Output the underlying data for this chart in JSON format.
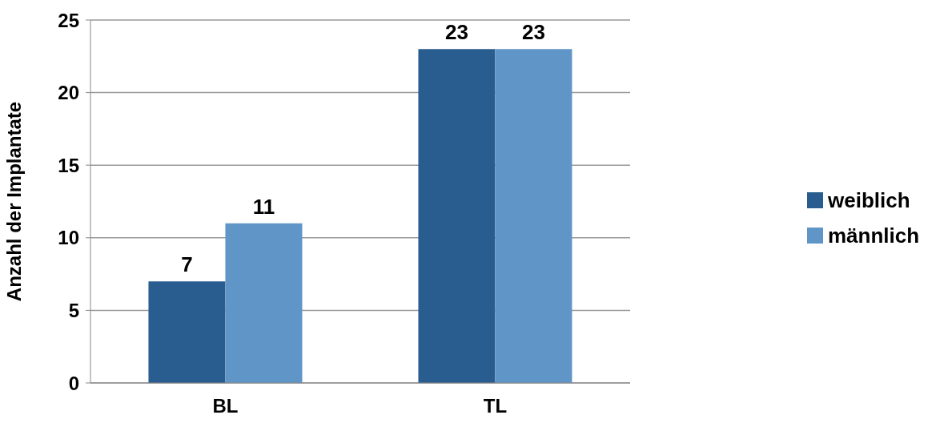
{
  "chart_data": {
    "type": "bar",
    "ylabel": "Anzahl der Implantate",
    "categories": [
      "BL",
      "TL"
    ],
    "series": [
      {
        "name": "weiblich",
        "color": "#2a5d8f",
        "values": [
          7,
          23
        ]
      },
      {
        "name": "männlich",
        "color": "#6095c8",
        "values": [
          11,
          23
        ]
      }
    ],
    "ylim": [
      0,
      25
    ],
    "yticks": [
      0,
      5,
      10,
      15,
      20,
      25
    ],
    "grid": "y",
    "legend": "right",
    "data_labels": true
  }
}
